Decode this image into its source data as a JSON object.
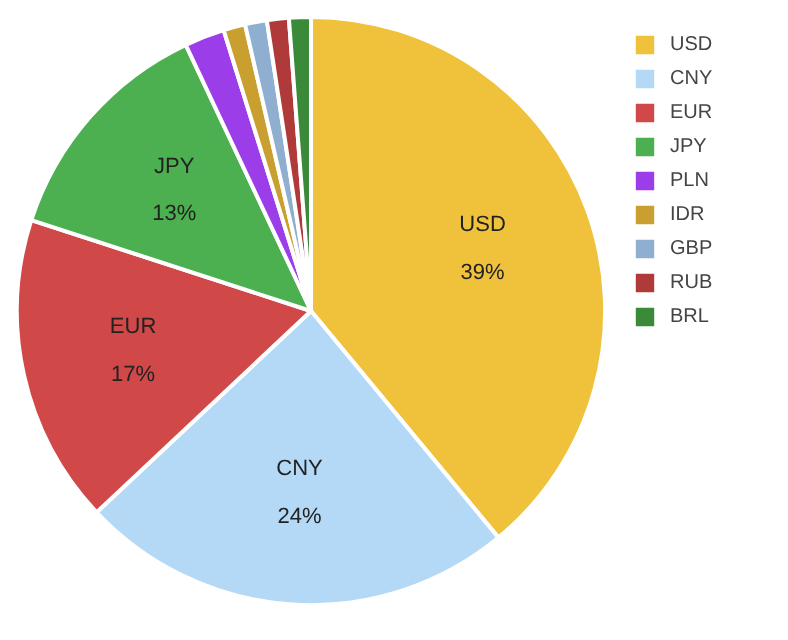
{
  "chart_data": {
    "type": "pie",
    "categories": [
      "USD",
      "CNY",
      "EUR",
      "JPY",
      "PLN",
      "IDR",
      "GBP",
      "RUB",
      "BRL"
    ],
    "values": [
      39,
      24,
      17,
      13,
      2.2,
      1.2,
      1.2,
      1.2,
      1.2
    ],
    "colors": [
      "#f0c23b",
      "#b3d9f7",
      "#d04848",
      "#4caf50",
      "#9b3de8",
      "#c9a030",
      "#8fafd0",
      "#b03a3a",
      "#3a8a3a"
    ],
    "value_labels": [
      "39%",
      "24%",
      "17%",
      "13%",
      null,
      null,
      null,
      null,
      null
    ],
    "legend": "top right"
  }
}
